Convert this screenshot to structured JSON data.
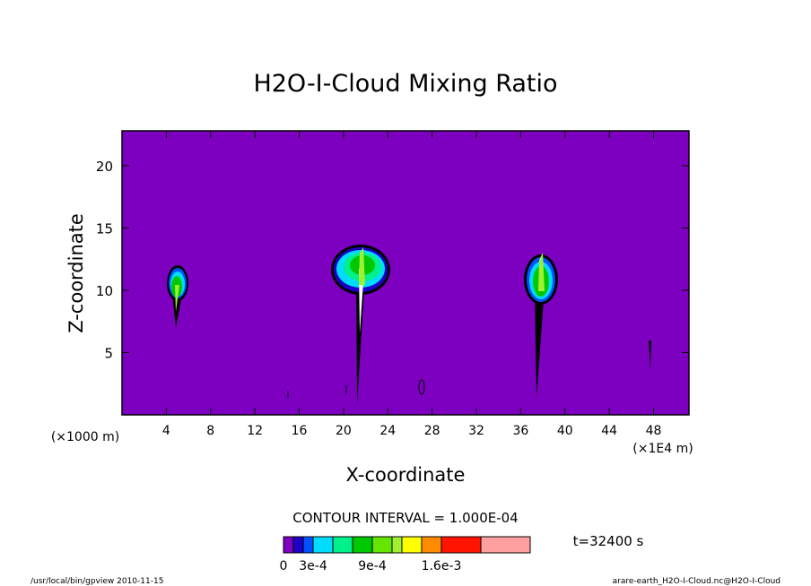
{
  "chart_data": {
    "type": "contour",
    "title": "H2O-I-Cloud Mixing Ratio",
    "x_label": "X-coordinate",
    "y_label": "Z-coordinate",
    "x_unit": "(×1000 m)",
    "x_unit_right": "(×1E4 m)",
    "xlim": [
      0,
      51.2
    ],
    "xticks": [
      4,
      8,
      12,
      16,
      20,
      24,
      28,
      32,
      36,
      40,
      44,
      48
    ],
    "ylim": [
      0,
      22.8
    ],
    "yticks": [
      5,
      10,
      15,
      20
    ],
    "background_color": "#7d00c0",
    "contour_interval": "CONTOUR INTERVAL = 1.000E-04",
    "time_label": "t=32400 s",
    "colorbar": {
      "bounds": [
        0,
        0.0001,
        0.0002,
        0.0003,
        0.0005,
        0.0007,
        0.0009,
        0.0011,
        0.0012,
        0.0014,
        0.0016,
        0.002,
        0.0025
      ],
      "colors": [
        "#7d00c0",
        "#1e00c8",
        "#0050ff",
        "#00dcff",
        "#00f08c",
        "#00c800",
        "#64e600",
        "#a0f032",
        "#ffff00",
        "#ff8c00",
        "#ff1400",
        "#ffa0a0"
      ],
      "ticks": [
        0,
        {
          "value": 0.0003,
          "label": "3e-4"
        },
        {
          "value": 0.0009,
          "label": "9e-4"
        },
        {
          "value": 0.0016,
          "label": "1.6e-3"
        }
      ]
    },
    "footer_left": "/usr/local/bin/gpview  2010-11-15",
    "footer_right": "arare-earth_H2O-I-Cloud.nc@H2O-I-Cloud"
  }
}
